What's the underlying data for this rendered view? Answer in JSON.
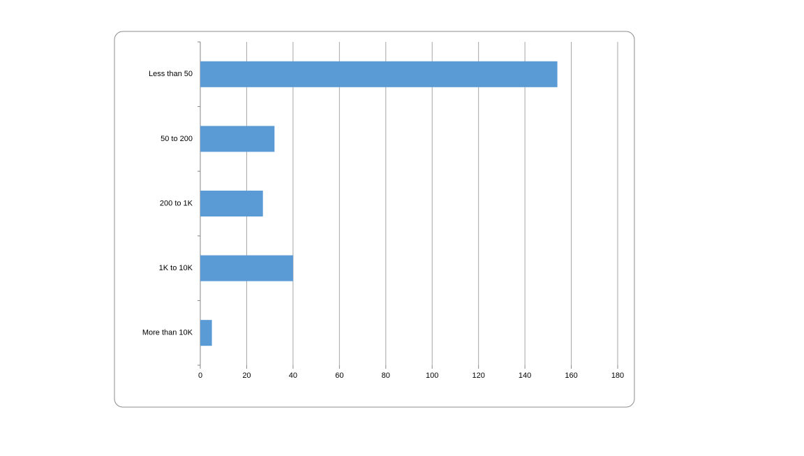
{
  "chart_data": {
    "type": "hbar",
    "categories": [
      "Less than 50",
      "50 to 200",
      "200 to 1K",
      "1K to 10K",
      "More than 10K"
    ],
    "values": [
      154,
      32,
      27,
      40,
      5
    ],
    "color": "#5b9bd5",
    "xlim": [
      0,
      180
    ],
    "xticks": [
      0,
      20,
      40,
      60,
      80,
      100,
      120,
      140,
      160,
      180
    ],
    "grid": true
  }
}
